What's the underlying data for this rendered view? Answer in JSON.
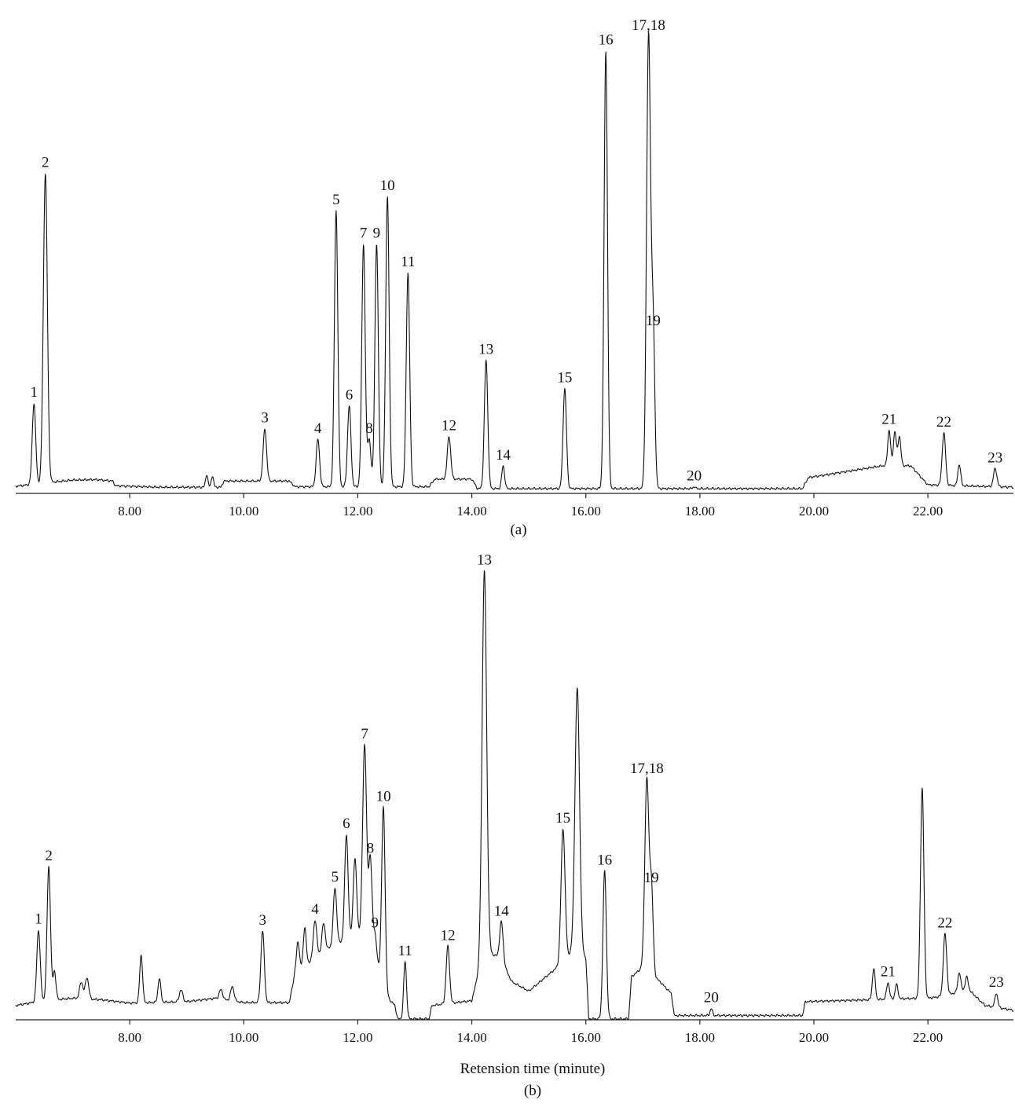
{
  "chart_data": [
    {
      "type": "line",
      "panel_label": "(a)",
      "xlabel": "",
      "ylabel": "",
      "xlim": [
        6.0,
        23.5
      ],
      "ylim": [
        0,
        100
      ],
      "x_ticks": [
        "8.00",
        "10.00",
        "12.00",
        "14.00",
        "16.00",
        "18.00",
        "20.00",
        "22.00"
      ],
      "x_tick_values": [
        8,
        10,
        12,
        14,
        16,
        18,
        20,
        22
      ],
      "baseline": [
        [
          6.0,
          1.5
        ],
        [
          6.5,
          2.2
        ],
        [
          7.0,
          2.8
        ],
        [
          7.4,
          2.9
        ],
        [
          7.7,
          2.6
        ],
        [
          7.75,
          1.6
        ],
        [
          8.5,
          1.3
        ],
        [
          9.6,
          1.3
        ],
        [
          9.65,
          2.6
        ],
        [
          10.8,
          2.6
        ],
        [
          10.9,
          1.4
        ],
        [
          13.25,
          1.4
        ],
        [
          13.35,
          3.0
        ],
        [
          14.0,
          3.0
        ],
        [
          14.1,
          1.0
        ],
        [
          19.8,
          1.0
        ],
        [
          19.9,
          3.3
        ],
        [
          21.2,
          5.8
        ],
        [
          21.7,
          5.8
        ],
        [
          22.0,
          1.8
        ],
        [
          23.5,
          1.3
        ]
      ],
      "peaks": [
        {
          "label": "1",
          "x": 6.32,
          "y": 17,
          "w": 0.03
        },
        {
          "label": "2",
          "x": 6.52,
          "y": 65,
          "w": 0.035
        },
        {
          "label": "",
          "x": 9.35,
          "y": 2.7,
          "w": 0.02
        },
        {
          "label": "",
          "x": 9.45,
          "y": 2.4,
          "w": 0.02
        },
        {
          "label": "3",
          "x": 10.37,
          "y": 11,
          "w": 0.03
        },
        {
          "label": "4",
          "x": 11.3,
          "y": 10,
          "w": 0.03
        },
        {
          "label": "5",
          "x": 11.62,
          "y": 58,
          "w": 0.03
        },
        {
          "label": "6",
          "x": 11.85,
          "y": 17,
          "w": 0.03
        },
        {
          "label": "7",
          "x": 12.1,
          "y": 51,
          "w": 0.03
        },
        {
          "label": "8",
          "x": 12.2,
          "y": 10,
          "w": 0.03
        },
        {
          "label": "9",
          "x": 12.33,
          "y": 51,
          "w": 0.03
        },
        {
          "label": "10",
          "x": 12.52,
          "y": 61,
          "w": 0.03
        },
        {
          "label": "11",
          "x": 12.88,
          "y": 45,
          "w": 0.03
        },
        {
          "label": "12",
          "x": 13.6,
          "y": 9,
          "w": 0.03
        },
        {
          "label": "13",
          "x": 14.25,
          "y": 27,
          "w": 0.03
        },
        {
          "label": "14",
          "x": 14.55,
          "y": 4.8,
          "w": 0.025
        },
        {
          "label": "15",
          "x": 15.63,
          "y": 21,
          "w": 0.03
        },
        {
          "label": "16",
          "x": 16.35,
          "y": 92,
          "w": 0.03
        },
        {
          "label": "17,18",
          "x": 17.1,
          "y": 95,
          "w": 0.035
        },
        {
          "label": "19",
          "x": 17.18,
          "y": 33,
          "w": 0.03
        },
        {
          "label": "20",
          "x": 17.9,
          "y": 0.4,
          "w": 0.02
        },
        {
          "label": "21",
          "x": 21.32,
          "y": 7.5,
          "w": 0.025
        },
        {
          "label": "",
          "x": 21.42,
          "y": 7.2,
          "w": 0.025
        },
        {
          "label": "",
          "x": 21.5,
          "y": 6.2,
          "w": 0.025
        },
        {
          "label": "22",
          "x": 22.28,
          "y": 11,
          "w": 0.03
        },
        {
          "label": "",
          "x": 22.55,
          "y": 4.5,
          "w": 0.025
        },
        {
          "label": "23",
          "x": 23.18,
          "y": 3.8,
          "w": 0.03
        }
      ]
    },
    {
      "type": "line",
      "panel_label": "(b)",
      "xlabel": "Retension time (minute)",
      "ylabel": "",
      "xlim": [
        6.0,
        23.5
      ],
      "ylim": [
        0,
        100
      ],
      "x_ticks": [
        "8.00",
        "10.00",
        "12.00",
        "14.00",
        "16.00",
        "18.00",
        "20.00",
        "22.00"
      ],
      "x_tick_values": [
        8,
        10,
        12,
        14,
        16,
        18,
        20,
        22
      ],
      "baseline": [
        [
          6.0,
          3.0
        ],
        [
          6.5,
          4.0
        ],
        [
          7.0,
          4.5
        ],
        [
          7.5,
          4.2
        ],
        [
          8.0,
          3.5
        ],
        [
          9.0,
          3.8
        ],
        [
          9.5,
          4.5
        ],
        [
          10.0,
          3.6
        ],
        [
          10.8,
          3.6
        ],
        [
          10.9,
          10.0
        ],
        [
          11.5,
          15.0
        ],
        [
          12.0,
          18.0
        ],
        [
          12.4,
          10.0
        ],
        [
          12.5,
          5.0
        ],
        [
          12.65,
          3.0
        ],
        [
          12.7,
          0.2
        ],
        [
          13.25,
          0.2
        ],
        [
          13.3,
          3.0
        ],
        [
          14.0,
          4.0
        ],
        [
          14.1,
          9.0
        ],
        [
          14.3,
          14.0
        ],
        [
          14.5,
          13.0
        ],
        [
          14.7,
          8.0
        ],
        [
          15.0,
          6.0
        ],
        [
          15.4,
          10.0
        ],
        [
          15.6,
          12.0
        ],
        [
          15.8,
          15.0
        ],
        [
          16.0,
          13.0
        ],
        [
          16.05,
          0.2
        ],
        [
          16.75,
          0.2
        ],
        [
          16.8,
          9.0
        ],
        [
          17.0,
          11.0
        ],
        [
          17.3,
          8.0
        ],
        [
          17.5,
          5.5
        ],
        [
          17.55,
          0.9
        ],
        [
          19.8,
          0.9
        ],
        [
          19.85,
          3.8
        ],
        [
          21.0,
          4.2
        ],
        [
          21.8,
          4.5
        ],
        [
          22.0,
          4.5
        ],
        [
          22.3,
          5.0
        ],
        [
          22.7,
          6.5
        ],
        [
          23.0,
          3.0
        ],
        [
          23.5,
          2.0
        ]
      ],
      "peaks": [
        {
          "label": "1",
          "x": 6.4,
          "y": 15,
          "w": 0.03
        },
        {
          "label": "2",
          "x": 6.58,
          "y": 28,
          "w": 0.03
        },
        {
          "label": "",
          "x": 6.68,
          "y": 6,
          "w": 0.025
        },
        {
          "label": "",
          "x": 7.15,
          "y": 3.5,
          "w": 0.03
        },
        {
          "label": "",
          "x": 7.25,
          "y": 4.5,
          "w": 0.03
        },
        {
          "label": "",
          "x": 8.2,
          "y": 10,
          "w": 0.025
        },
        {
          "label": "",
          "x": 8.52,
          "y": 5,
          "w": 0.025
        },
        {
          "label": "",
          "x": 8.9,
          "y": 2.5,
          "w": 0.03
        },
        {
          "label": "",
          "x": 9.6,
          "y": 2.0,
          "w": 0.03
        },
        {
          "label": "",
          "x": 9.8,
          "y": 3.0,
          "w": 0.03
        },
        {
          "label": "3",
          "x": 10.33,
          "y": 15,
          "w": 0.03
        },
        {
          "label": "",
          "x": 10.95,
          "y": 6,
          "w": 0.025
        },
        {
          "label": "",
          "x": 11.07,
          "y": 8,
          "w": 0.025
        },
        {
          "label": "4",
          "x": 11.25,
          "y": 8,
          "w": 0.03
        },
        {
          "label": "",
          "x": 11.4,
          "y": 6,
          "w": 0.03
        },
        {
          "label": "5",
          "x": 11.6,
          "y": 12,
          "w": 0.03
        },
        {
          "label": "6",
          "x": 11.8,
          "y": 22,
          "w": 0.03
        },
        {
          "label": "",
          "x": 11.95,
          "y": 16,
          "w": 0.03
        },
        {
          "label": "7",
          "x": 12.12,
          "y": 42,
          "w": 0.035
        },
        {
          "label": "8",
          "x": 12.22,
          "y": 20,
          "w": 0.03
        },
        {
          "label": "9",
          "x": 12.3,
          "y": 6,
          "w": 0.03
        },
        {
          "label": "10",
          "x": 12.45,
          "y": 37,
          "w": 0.03
        },
        {
          "label": "11",
          "x": 12.83,
          "y": 12,
          "w": 0.025
        },
        {
          "label": "12",
          "x": 13.58,
          "y": 12,
          "w": 0.03
        },
        {
          "label": "13",
          "x": 14.22,
          "y": 82,
          "w": 0.04
        },
        {
          "label": "14",
          "x": 14.52,
          "y": 8,
          "w": 0.03
        },
        {
          "label": "15",
          "x": 15.6,
          "y": 28,
          "w": 0.035
        },
        {
          "label": "",
          "x": 15.85,
          "y": 55,
          "w": 0.04
        },
        {
          "label": "16",
          "x": 16.33,
          "y": 31,
          "w": 0.03
        },
        {
          "label": "17,18",
          "x": 17.07,
          "y": 40,
          "w": 0.035
        },
        {
          "label": "19",
          "x": 17.15,
          "y": 18,
          "w": 0.03
        },
        {
          "label": "20",
          "x": 18.2,
          "y": 1.5,
          "w": 0.02
        },
        {
          "label": "",
          "x": 21.05,
          "y": 6.5,
          "w": 0.025
        },
        {
          "label": "21",
          "x": 21.3,
          "y": 3.5,
          "w": 0.025
        },
        {
          "label": "",
          "x": 21.45,
          "y": 3.0,
          "w": 0.025
        },
        {
          "label": "",
          "x": 21.9,
          "y": 44,
          "w": 0.03
        },
        {
          "label": "22",
          "x": 22.3,
          "y": 13,
          "w": 0.03
        },
        {
          "label": "",
          "x": 22.55,
          "y": 4.0,
          "w": 0.025
        },
        {
          "label": "",
          "x": 22.68,
          "y": 2.5,
          "w": 0.025
        },
        {
          "label": "23",
          "x": 23.2,
          "y": 3.0,
          "w": 0.025
        }
      ]
    }
  ]
}
